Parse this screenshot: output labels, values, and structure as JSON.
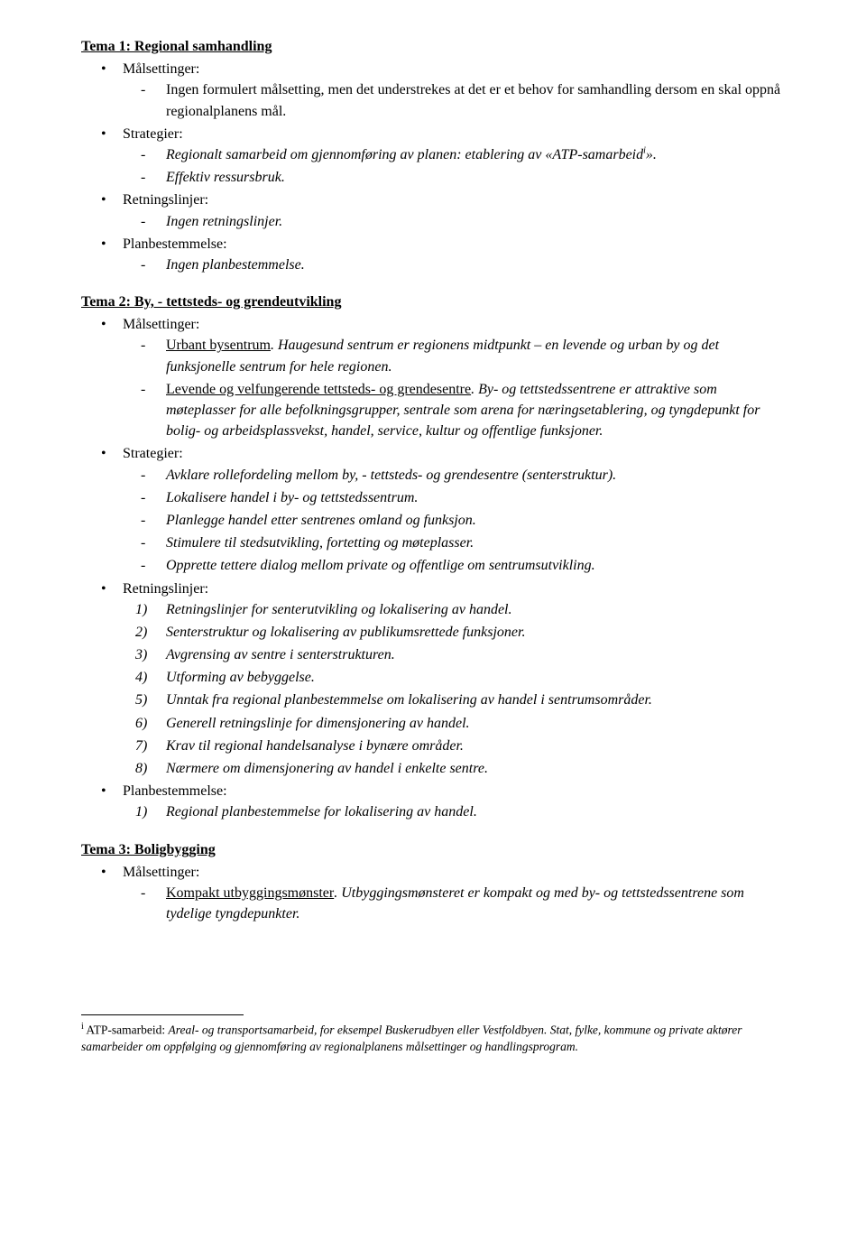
{
  "tema1": {
    "title": "Tema 1: Regional samhandling",
    "mal_label": "Målsettinger:",
    "mal_item1": "Ingen formulert målsetting, men det understrekes at det er et behov for samhandling dersom en skal oppnå regionalplanens mål.",
    "strat_label": "Strategier:",
    "strat_item1_prefix": "Regionalt samarbeid om gjennomføring av planen: etablering av «ATP-samarbeid",
    "strat_item1_sup": "i",
    "strat_item1_suffix": "».",
    "strat_item2": "Effektiv ressursbruk.",
    "retn_label": "Retningslinjer:",
    "retn_item1": "Ingen retningslinjer.",
    "plan_label": "Planbestemmelse:",
    "plan_item1": "Ingen planbestemmelse."
  },
  "tema2": {
    "title": "Tema 2: By, - tettsteds- og grendeutvikling",
    "mal_label": "Målsettinger:",
    "mal_item1_u": "Urbant bysentrum",
    "mal_item1_rest": ". Haugesund sentrum er regionens midtpunkt – en levende og urban by og det funksjonelle sentrum for hele regionen.",
    "mal_item2_u": "Levende og velfungerende tettsteds- og grendesentre",
    "mal_item2_rest": ". By- og tettstedssentrene er attraktive som møteplasser for alle befolkningsgrupper, sentrale som arena for næringsetablering, og tyngdepunkt for bolig- og arbeidsplassvekst, handel, service, kultur og offentlige funksjoner.",
    "strat_label": "Strategier:",
    "strat_item1": "Avklare rollefordeling mellom by, - tettsteds- og grendesentre (senterstruktur).",
    "strat_item2": "Lokalisere handel i by- og tettstedssentrum.",
    "strat_item3": "Planlegge handel etter sentrenes omland og funksjon.",
    "strat_item4": "Stimulere til stedsutvikling, fortetting og møteplasser.",
    "strat_item5": "Opprette tettere dialog mellom private og offentlige om sentrumsutvikling.",
    "retn_label": "Retningslinjer:",
    "retn_n1": "1)",
    "retn_t1": "Retningslinjer for senterutvikling og lokalisering av handel.",
    "retn_n2": "2)",
    "retn_t2": "Senterstruktur og lokalisering av publikumsrettede funksjoner.",
    "retn_n3": "3)",
    "retn_t3": "Avgrensing av sentre i senterstrukturen.",
    "retn_n4": "4)",
    "retn_t4": "Utforming av bebyggelse.",
    "retn_n5": "5)",
    "retn_t5": "Unntak fra regional planbestemmelse om lokalisering av handel i sentrumsområder.",
    "retn_n6": "6)",
    "retn_t6": "Generell retningslinje for dimensjonering av handel.",
    "retn_n7": "7)",
    "retn_t7": "Krav til regional handelsanalyse i bynære områder.",
    "retn_n8": "8)",
    "retn_t8": "Nærmere om dimensjonering av handel i enkelte sentre.",
    "plan_label": "Planbestemmelse:",
    "plan_n1": "1)",
    "plan_t1": "Regional planbestemmelse for lokalisering av handel."
  },
  "tema3": {
    "title": "Tema 3: Boligbygging",
    "mal_label": "Målsettinger:",
    "mal_item1_u": "Kompakt utbyggingsmønster",
    "mal_item1_rest": ". Utbyggingsmønsteret er kompakt og med by- og tettstedssentrene som tydelige tyngdepunkter."
  },
  "footnote": {
    "sup": "i",
    "lead": " ATP-samarbeid: ",
    "body": "Areal- og transportsamarbeid, for eksempel Buskerudbyen eller Vestfoldbyen. Stat, fylke, kommune og private aktører samarbeider om oppfølging og gjennomføring av regionalplanens målsettinger og handlingsprogram."
  }
}
